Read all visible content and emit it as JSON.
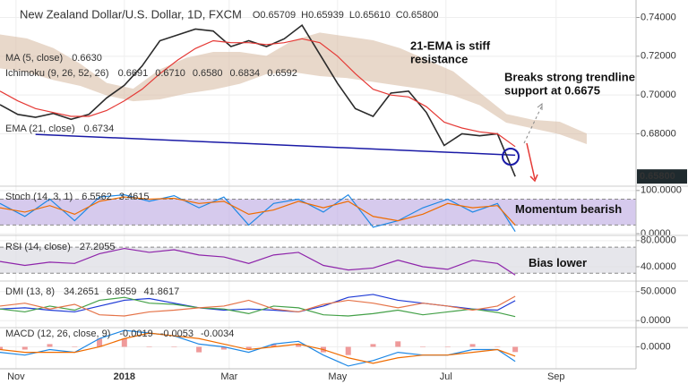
{
  "chart_data": [
    {
      "type": "line",
      "title": "New Zealand Dollar/U.S. Dollar, 1D, FXCM",
      "ohlc": [
        "O0.65709",
        "H0.65939",
        "L0.65610",
        "C0.65800"
      ],
      "indicators": [
        {
          "label": "MA (5, close)",
          "readouts": [
            {
              "text": "0.6630",
              "color": "#e53935"
            }
          ]
        },
        {
          "label": "Ichimoku (9, 26, 52, 26)",
          "readouts": [
            {
              "text": "0.6691",
              "color": "#1e88e5"
            },
            {
              "text": "0.6710",
              "color": "#e53935"
            },
            {
              "text": "0.6580",
              "color": "#43a047"
            },
            {
              "text": "0.6834",
              "color": "#43a047"
            },
            {
              "text": "0.6592",
              "color": "#e53935"
            }
          ]
        },
        {
          "label": "EMA (21, close)",
          "readouts": [
            {
              "text": "0.6734",
              "color": "#e53935"
            }
          ]
        }
      ],
      "xlim": [
        0,
        358
      ],
      "ylim": [
        0.653,
        0.749
      ],
      "yticks": [
        {
          "value": 0.74,
          "label": "0.74000"
        },
        {
          "value": 0.72,
          "label": "0.72000"
        },
        {
          "value": 0.7,
          "label": "0.70000"
        },
        {
          "value": 0.68,
          "label": "0.68000"
        }
      ],
      "x": [
        0,
        10,
        20,
        30,
        40,
        50,
        60,
        70,
        80,
        90,
        100,
        110,
        120,
        130,
        140,
        150,
        160,
        170,
        180,
        190,
        200,
        210,
        220,
        230,
        240,
        250,
        260,
        270,
        280,
        290
      ],
      "series": [
        {
          "color": "#2b2b2b",
          "values": [
            0.695,
            0.69,
            0.6885,
            0.6905,
            0.6875,
            0.69,
            0.6985,
            0.705,
            0.715,
            0.728,
            0.731,
            0.734,
            0.733,
            0.725,
            0.728,
            0.725,
            0.729,
            0.736,
            0.721,
            0.706,
            0.693,
            0.689,
            0.701,
            0.702,
            0.691,
            0.674,
            0.68,
            0.679,
            0.68,
            0.658
          ]
        },
        {
          "color": "#e53935",
          "values": [
            0.702,
            0.697,
            0.693,
            0.691,
            0.689,
            0.689,
            0.692,
            0.697,
            0.703,
            0.711,
            0.718,
            0.724,
            0.728,
            0.727,
            0.727,
            0.726,
            0.727,
            0.729,
            0.727,
            0.72,
            0.711,
            0.703,
            0.7,
            0.699,
            0.694,
            0.686,
            0.683,
            0.681,
            0.68,
            0.6734
          ]
        }
      ],
      "cloud": {
        "color": "#d7b9a0",
        "x": [
          0,
          15,
          30,
          45,
          60,
          75,
          90,
          105,
          120,
          135,
          150,
          165,
          180,
          195,
          210,
          225,
          240,
          255,
          270,
          285,
          300,
          315,
          330
        ],
        "upper": [
          0.731,
          0.729,
          0.724,
          0.716,
          0.706,
          0.703,
          0.713,
          0.719,
          0.722,
          0.722,
          0.72,
          0.728,
          0.732,
          0.73,
          0.728,
          0.724,
          0.718,
          0.712,
          0.701,
          0.69,
          0.687,
          0.686,
          0.68
        ],
        "lower": [
          0.714,
          0.712,
          0.708,
          0.705,
          0.7,
          0.697,
          0.698,
          0.701,
          0.703,
          0.706,
          0.711,
          0.712,
          0.71,
          0.709,
          0.707,
          0.705,
          0.703,
          0.7,
          0.695,
          0.686,
          0.683,
          0.68,
          0.675
        ]
      },
      "trendline": {
        "color": "#1a1aa6",
        "x": [
          20,
          290
        ],
        "values": [
          0.6797,
          0.669
        ]
      },
      "last_price_label": "0.65800",
      "annotations": [
        [
          "21-EMA is stiff",
          "resistance"
        ],
        [
          "Breaks strong trendline",
          "support at 0.6675"
        ]
      ]
    },
    {
      "type": "line",
      "label": "Stoch (14, 3, 1)",
      "readouts": [
        {
          "text": "6.5562",
          "color": "#1e88e5"
        },
        {
          "text": "3.4615",
          "color": "#ef6c00"
        }
      ],
      "xlim": [
        0,
        358
      ],
      "ylim": [
        -4,
        110
      ],
      "yticks": [
        {
          "value": 100,
          "label": "100.0000"
        },
        {
          "value": 0,
          "label": "0.0000"
        }
      ],
      "band": [
        20,
        80
      ],
      "band_color": "#c5b3e6",
      "x": [
        0,
        14,
        28,
        42,
        56,
        70,
        84,
        98,
        112,
        126,
        140,
        154,
        168,
        182,
        196,
        210,
        224,
        238,
        252,
        266,
        280,
        290
      ],
      "series": [
        {
          "color": "#1e88e5",
          "values": [
            70,
            40,
            80,
            30,
            85,
            90,
            75,
            88,
            60,
            85,
            20,
            70,
            80,
            50,
            90,
            15,
            30,
            60,
            80,
            50,
            70,
            5
          ]
        },
        {
          "color": "#ef6c00",
          "values": [
            60,
            50,
            65,
            45,
            75,
            85,
            80,
            82,
            70,
            75,
            45,
            55,
            75,
            60,
            75,
            40,
            30,
            45,
            70,
            60,
            65,
            20
          ]
        }
      ],
      "annotation": "Momentum bearish"
    },
    {
      "type": "line",
      "label": "RSI (14, close)",
      "readouts": [
        {
          "text": "27.2055",
          "color": "#8e24aa"
        }
      ],
      "xlim": [
        0,
        358
      ],
      "ylim": [
        18,
        88
      ],
      "yticks": [
        {
          "value": 80,
          "label": "80.0000"
        },
        {
          "value": 40,
          "label": "40.0000"
        }
      ],
      "band": [
        30,
        70
      ],
      "band_color": "#dcdce2",
      "x": [
        0,
        14,
        28,
        42,
        56,
        70,
        84,
        98,
        112,
        126,
        140,
        154,
        168,
        182,
        196,
        210,
        224,
        238,
        252,
        266,
        280,
        290
      ],
      "series": [
        {
          "color": "#8e24aa",
          "values": [
            48,
            42,
            47,
            45,
            60,
            68,
            62,
            66,
            58,
            55,
            45,
            58,
            62,
            42,
            35,
            38,
            50,
            40,
            36,
            50,
            45,
            27.2
          ]
        }
      ],
      "annotation": "Bias lower"
    },
    {
      "type": "line",
      "label": "DMI (13, 8)",
      "readouts": [
        {
          "text": "34.2651",
          "color": "#1e3ad6"
        },
        {
          "text": "6.8559",
          "color": "#43a047"
        },
        {
          "text": "41.8617",
          "color": "#e53935"
        }
      ],
      "xlim": [
        0,
        358
      ],
      "ylim": [
        -12,
        68
      ],
      "yticks": [
        {
          "value": 50,
          "label": "50.0000"
        },
        {
          "value": 0,
          "label": "0.0000"
        }
      ],
      "x": [
        0,
        14,
        28,
        42,
        56,
        70,
        84,
        98,
        112,
        126,
        140,
        154,
        168,
        182,
        196,
        210,
        224,
        238,
        252,
        266,
        280,
        290
      ],
      "series": [
        {
          "color": "#1e3ad6",
          "values": [
            20,
            22,
            18,
            15,
            25,
            35,
            38,
            30,
            22,
            18,
            20,
            18,
            15,
            25,
            40,
            45,
            35,
            30,
            25,
            20,
            18,
            34.3
          ]
        },
        {
          "color": "#43a047",
          "values": [
            20,
            15,
            25,
            18,
            35,
            40,
            30,
            28,
            22,
            20,
            12,
            25,
            22,
            10,
            8,
            12,
            18,
            10,
            15,
            20,
            14,
            6.9
          ]
        },
        {
          "color": "#e57348",
          "values": [
            25,
            30,
            20,
            28,
            10,
            8,
            15,
            18,
            22,
            25,
            35,
            20,
            15,
            28,
            35,
            30,
            22,
            30,
            25,
            18,
            25,
            41.9
          ]
        }
      ]
    },
    {
      "type": "line",
      "label": "MACD (12, 26, close, 9)",
      "readouts": [
        {
          "text": "-0.0019",
          "color": "#e53935"
        },
        {
          "text": "-0.0053",
          "color": "#1e88e5"
        },
        {
          "text": "-0.0034",
          "color": "#ef6c00"
        }
      ],
      "xlim": [
        0,
        358
      ],
      "ylim": [
        -0.008,
        0.007
      ],
      "yticks": [
        {
          "value": 0,
          "label": "0.0000"
        }
      ],
      "xticks": [
        {
          "value": 9,
          "label": "Nov"
        },
        {
          "value": 70,
          "label": "2018"
        },
        {
          "value": 129,
          "label": "Mar"
        },
        {
          "value": 190,
          "label": "May"
        },
        {
          "value": 251,
          "label": "Jul"
        },
        {
          "value": 313,
          "label": "Sep"
        }
      ],
      "x": [
        0,
        14,
        28,
        42,
        56,
        70,
        84,
        98,
        112,
        126,
        140,
        154,
        168,
        182,
        196,
        210,
        224,
        238,
        252,
        266,
        280,
        290
      ],
      "series": [
        {
          "style": "bar",
          "color": "#ef9a9a",
          "values": [
            -0.001,
            -0.001,
            0.001,
            0,
            0.003,
            0.003,
            0,
            0,
            -0.002,
            -0.001,
            -0.001,
            0.001,
            0.001,
            -0.002,
            -0.003,
            0.001,
            0.002,
            0,
            0,
            0.001,
            0,
            -0.0019
          ]
        },
        {
          "color": "#1e88e5",
          "values": [
            -0.002,
            -0.003,
            -0.001,
            -0.002,
            0.003,
            0.006,
            0.005,
            0.004,
            0.001,
            0,
            -0.002,
            0.001,
            0.002,
            -0.003,
            -0.007,
            -0.005,
            -0.002,
            -0.003,
            -0.003,
            -0.001,
            -0.001,
            -0.0053
          ]
        },
        {
          "color": "#ef6c00",
          "values": [
            -0.001,
            -0.002,
            -0.002,
            -0.002,
            0,
            0.003,
            0.005,
            0.004,
            0.003,
            0.001,
            -0.001,
            0,
            0.001,
            -0.001,
            -0.004,
            -0.006,
            -0.004,
            -0.003,
            -0.003,
            -0.002,
            -0.001,
            -0.0034
          ]
        }
      ]
    }
  ]
}
